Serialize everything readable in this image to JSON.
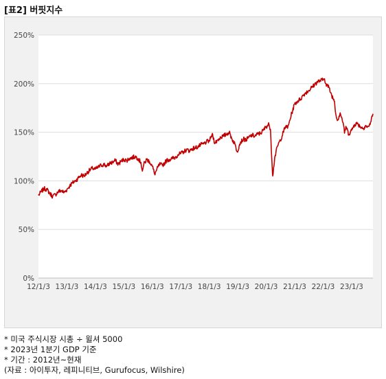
{
  "header": {
    "title": "[표2] 버핏지수"
  },
  "notes": [
    "* 미국 주식시장 시총 ÷ 윌셔 5000",
    "* 2023년 1분기 GDP 기준",
    "* 기간 : 2012년~현재",
    "(자료 : 아이투자, 레피니티브, Gurufocus, Wilshire)"
  ],
  "colors": {
    "line": "#c00000",
    "plot_bg": "#ffffff",
    "panel_bg": "#f1f1f1",
    "grid": "#dddddd"
  },
  "chart_data": {
    "type": "line",
    "title": "",
    "xlabel": "",
    "ylabel": "",
    "y_ticks": [
      "0%",
      "50%",
      "100%",
      "150%",
      "200%",
      "250%"
    ],
    "x_ticks": [
      "12/1/3",
      "13/1/3",
      "14/1/3",
      "15/1/3",
      "16/1/3",
      "17/1/3",
      "18/1/3",
      "19/1/3",
      "20/1/3",
      "21/1/3",
      "22/1/3",
      "23/1/3"
    ],
    "x_range": [
      2012.0,
      2023.75
    ],
    "ylim": [
      0,
      250
    ],
    "grid": true,
    "series": [
      {
        "x": [
          2012.0,
          2012.1,
          2012.2,
          2012.3,
          2012.4,
          2012.5,
          2012.6,
          2012.7,
          2012.8,
          2012.9,
          2013.0,
          2013.1,
          2013.2,
          2013.3,
          2013.4,
          2013.5,
          2013.6,
          2013.7,
          2013.8,
          2013.9,
          2014.0,
          2014.1,
          2014.2,
          2014.3,
          2014.4,
          2014.5,
          2014.6,
          2014.7,
          2014.8,
          2014.9,
          2015.0,
          2015.1,
          2015.2,
          2015.3,
          2015.4,
          2015.5,
          2015.6,
          2015.65,
          2015.7,
          2015.8,
          2015.9,
          2016.0,
          2016.08,
          2016.15,
          2016.25,
          2016.35,
          2016.45,
          2016.5,
          2016.6,
          2016.7,
          2016.8,
          2016.9,
          2017.0,
          2017.1,
          2017.2,
          2017.3,
          2017.4,
          2017.5,
          2017.6,
          2017.7,
          2017.8,
          2017.9,
          2018.0,
          2018.05,
          2018.1,
          2018.2,
          2018.3,
          2018.4,
          2018.5,
          2018.6,
          2018.7,
          2018.8,
          2018.9,
          2018.98,
          2019.05,
          2019.1,
          2019.2,
          2019.3,
          2019.4,
          2019.5,
          2019.6,
          2019.7,
          2019.8,
          2019.9,
          2020.0,
          2020.1,
          2020.15,
          2020.2,
          2020.23,
          2020.3,
          2020.4,
          2020.5,
          2020.6,
          2020.7,
          2020.75,
          2020.8,
          2020.9,
          2021.0,
          2021.1,
          2021.2,
          2021.3,
          2021.4,
          2021.5,
          2021.6,
          2021.7,
          2021.8,
          2021.9,
          2022.0,
          2022.05,
          2022.1,
          2022.2,
          2022.3,
          2022.4,
          2022.45,
          2022.5,
          2022.6,
          2022.7,
          2022.75,
          2022.8,
          2022.9,
          2023.0,
          2023.1,
          2023.2,
          2023.3,
          2023.4,
          2023.5,
          2023.55,
          2023.6,
          2023.65,
          2023.7,
          2023.75
        ],
        "y": [
          85,
          89,
          92,
          91,
          87,
          84,
          86,
          89,
          90,
          88,
          91,
          95,
          98,
          100,
          103,
          106,
          105,
          108,
          111,
          113,
          112,
          114,
          116,
          117,
          115,
          118,
          119,
          121,
          117,
          120,
          122,
          121,
          123,
          124,
          125,
          123,
          119,
          110,
          117,
          122,
          120,
          115,
          107,
          111,
          117,
          116,
          119,
          121,
          122,
          123,
          124,
          127,
          128,
          130,
          132,
          131,
          133,
          134,
          135,
          137,
          138,
          140,
          141,
          144,
          148,
          139,
          142,
          145,
          146,
          148,
          150,
          143,
          138,
          130,
          136,
          140,
          143,
          142,
          145,
          147,
          146,
          148,
          149,
          152,
          156,
          158,
          153,
          120,
          105,
          124,
          136,
          142,
          150,
          157,
          154,
          159,
          170,
          179,
          182,
          184,
          188,
          191,
          193,
          196,
          199,
          202,
          203,
          204,
          205,
          200,
          196,
          188,
          182,
          168,
          162,
          170,
          160,
          149,
          156,
          148,
          152,
          158,
          159,
          156,
          154,
          157,
          155,
          156,
          158,
          165,
          169
        ],
        "name": ""
      }
    ]
  }
}
